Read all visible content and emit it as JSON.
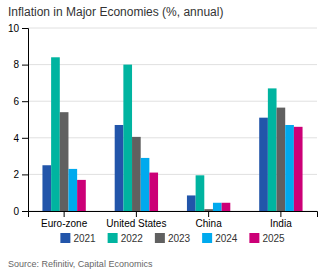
{
  "chart_data": {
    "type": "bar",
    "title": "Inflation in Major Economies (%, annual)",
    "source": "Source: Refinitiv, Capital Economics",
    "categories": [
      "Euro-zone",
      "United States",
      "China",
      "India"
    ],
    "series": [
      {
        "name": "2021",
        "color": "#2255aa",
        "values": [
          2.5,
          4.7,
          0.85,
          5.1
        ]
      },
      {
        "name": "2022",
        "color": "#00b4a0",
        "values": [
          8.4,
          8.0,
          1.95,
          6.7
        ]
      },
      {
        "name": "2023",
        "color": "#606060",
        "values": [
          5.4,
          4.05,
          0.1,
          5.65
        ]
      },
      {
        "name": "2024",
        "color": "#00aaee",
        "values": [
          2.3,
          2.9,
          0.45,
          4.7
        ]
      },
      {
        "name": "2025",
        "color": "#cc0077",
        "values": [
          1.7,
          2.1,
          0.45,
          4.6
        ]
      }
    ],
    "ylim": [
      0,
      10
    ],
    "yticks": [
      0,
      2,
      4,
      6,
      8,
      10
    ],
    "grid": true,
    "legend": "bottom"
  }
}
